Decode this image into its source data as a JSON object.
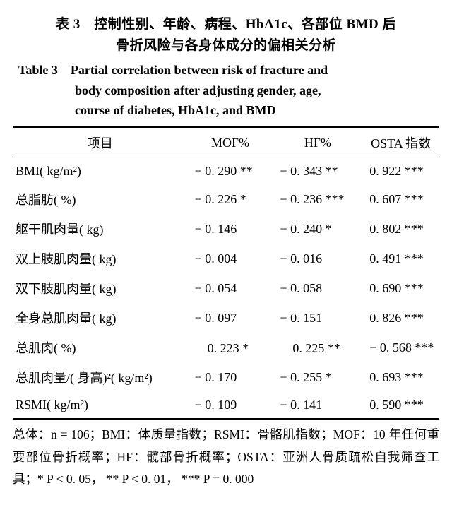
{
  "caption_zh_l1": "表 3　控制性别、年龄、病程、HbA1c、各部位 BMD 后",
  "caption_zh_l2": "骨折风险与各身体成分的偏相关分析",
  "caption_en_l1": "Table 3　Partial correlation between risk of fracture and",
  "caption_en_l2": "body composition after adjusting gender, age,",
  "caption_en_l3": "course of diabetes, HbA1c, and BMD",
  "headers": {
    "item": "项目",
    "mof": "MOF%",
    "hf": "HF%",
    "osta": "OSTA 指数"
  },
  "rows": [
    {
      "label": "BMI( kg/m²)",
      "mof": "− 0. 290 **",
      "hf": "− 0. 343 **",
      "osta": "0. 922 ***"
    },
    {
      "label": "总脂肪( %)",
      "mof": "− 0. 226 *",
      "hf": "− 0. 236 ***",
      "osta": "0. 607 ***"
    },
    {
      "label": "躯干肌肉量( kg)",
      "mof": "− 0. 146",
      "hf": "− 0. 240 *",
      "osta": "0. 802 ***"
    },
    {
      "label": "双上肢肌肉量( kg)",
      "mof": "− 0. 004",
      "hf": "− 0. 016",
      "osta": "0. 491 ***"
    },
    {
      "label": "双下肢肌肉量( kg)",
      "mof": "− 0. 054",
      "hf": "− 0. 058",
      "osta": "0. 690 ***"
    },
    {
      "label": "全身总肌肉量( kg)",
      "mof": "− 0. 097",
      "hf": "− 0. 151",
      "osta": "0. 826 ***"
    },
    {
      "label": "总肌肉( %)",
      "mof": "　0. 223 *",
      "hf": "　0. 225 **",
      "osta": "− 0. 568 ***"
    },
    {
      "label": "总肌肉量/( 身高)²( kg/m²)",
      "mof": "− 0. 170",
      "hf": "− 0. 255 *",
      "osta": "0. 693 ***"
    },
    {
      "label": "RSMI( kg/m²)",
      "mof": "− 0. 109",
      "hf": "− 0. 141",
      "osta": "0. 590 ***"
    }
  ],
  "footnote": "总体：n = 106；BMI：体质量指数；RSMI：骨骼肌指数；MOF：10 年任何重要部位骨折概率；HF：髋部骨折概率；OSTA：亚洲人骨质疏松自我筛查工具；* P < 0. 05， ** P < 0. 01， *** P = 0. 000"
}
